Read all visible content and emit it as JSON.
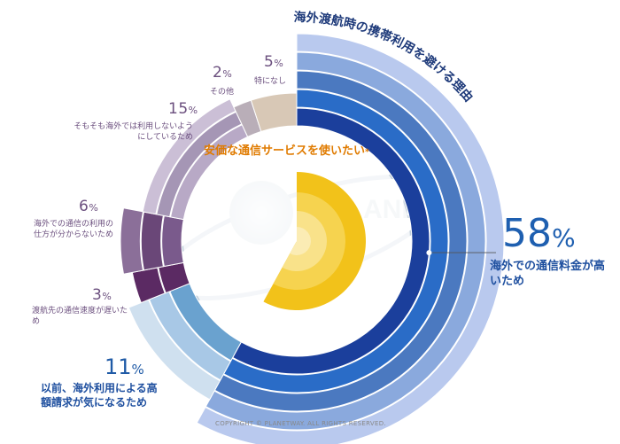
{
  "chart_data": {
    "type": "pie",
    "title": "海外渡航時の携帯利用を避ける理由",
    "center_label": "安価な通信サービスを使いたい",
    "categories": [
      "海外での通信料金が高いため",
      "以前、海外利用による高額請求が気になるため",
      "渡航先の通信速度が遅いため",
      "海外での通信の利用の仕方が分からないため",
      "そもそも海外では利用しないようにしているため",
      "その他",
      "特になし"
    ],
    "values": [
      58,
      11,
      3,
      6,
      15,
      2,
      5
    ],
    "value_labels": [
      "58",
      "11",
      "3",
      "6",
      "15",
      "2",
      "5"
    ],
    "unit": "%",
    "colors": {
      "high_fee": [
        "#1b3f9c",
        "#2a6cc7",
        "#4b79c0",
        "#8aa9dd",
        "#b9c9ee"
      ],
      "bill": [
        "#6aa2cf",
        "#a8c8e6",
        "#cfe0ef"
      ],
      "speed": "#5b2a63",
      "howto": [
        "#7a5a8c",
        "#6a4778",
        "#8b6f99"
      ],
      "notuse": [
        "#b8a9c6",
        "#a596b5",
        "#cbbfd6"
      ],
      "other": "#b9aeb8",
      "none": "#d8c8b6",
      "center_yellow": "#f2c21a"
    },
    "copyright": "COPYRIGHT © PLANETWAY. ALL RIGHTS RESERVED."
  }
}
